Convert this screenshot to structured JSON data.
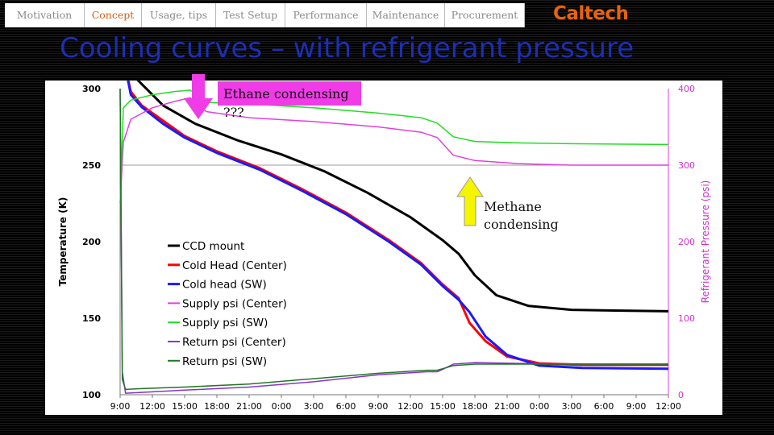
{
  "nav": {
    "tabs": [
      {
        "label": "Motivation",
        "active": false
      },
      {
        "label": "Concept",
        "active": true
      },
      {
        "label": "Usage, tips",
        "active": false
      },
      {
        "label": "Test Setup",
        "active": false
      },
      {
        "label": "Performance",
        "active": false
      },
      {
        "label": "Maintenance",
        "active": false
      },
      {
        "label": "Procurement",
        "active": false
      }
    ],
    "logo": "Caltech"
  },
  "header_small": {
    "line1": "",
    "line2": ""
  },
  "slide": {
    "title": "Cooling curves – with refrigerant pressure",
    "footer": ""
  },
  "annotations": {
    "ethane_label": "Ethane condensing",
    "ethane_q": "???",
    "methane_line1": "Methane",
    "methane_line2": "condensing"
  },
  "colors": {
    "accent": "#d0611a",
    "title": "#1c2fb3",
    "callout": "#f03ce6",
    "arrow_yellow": "#f5f500"
  },
  "chart_data": {
    "type": "line",
    "ylabel": "Temperature (K)",
    "y2label": "Refrigerant Pressure (psi)",
    "ylim": [
      100,
      300
    ],
    "y2lim": [
      0,
      400
    ],
    "yticks": [
      100,
      150,
      200,
      250,
      300
    ],
    "y2ticks": [
      0,
      100,
      200,
      300,
      400
    ],
    "xticks": [
      "9:00",
      "12:00",
      "15:00",
      "18:00",
      "21:00",
      "0:00",
      "3:00",
      "6:00",
      "9:00",
      "12:00",
      "15:00",
      "18:00",
      "21:00",
      "0:00",
      "3:00",
      "6:00",
      "9:00",
      "12:00"
    ],
    "xunits": "hours since 9:00",
    "gridlines": [
      250
    ],
    "legend_position": "center-left",
    "series": [
      {
        "name": "CCD mount",
        "axis": "left",
        "color": "#000000",
        "width": 3,
        "x": [
          0,
          0.6,
          2,
          4,
          7,
          11,
          15,
          19,
          23,
          27,
          30,
          31.5,
          33,
          35,
          38,
          42,
          46,
          51
        ],
        "y": [
          313,
          313,
          303,
          289,
          277,
          266,
          257,
          246,
          232,
          216,
          201,
          192,
          178,
          165,
          158,
          155.5,
          155,
          154.5
        ]
      },
      {
        "name": "Cold Head (Center)",
        "axis": "left",
        "color": "#ff0000",
        "width": 3,
        "x": [
          0,
          0.6,
          1,
          2,
          4,
          6,
          9,
          13,
          17,
          21,
          25,
          28,
          30,
          31.5,
          32.5,
          34,
          36,
          39,
          43,
          51
        ],
        "y": [
          310,
          310,
          298,
          289,
          279,
          269,
          259,
          248,
          234,
          219,
          201,
          186,
          172,
          163,
          147,
          135,
          125,
          120.5,
          119.5,
          119.5
        ]
      },
      {
        "name": "Cold head (SW)",
        "axis": "left",
        "color": "#1a1aff",
        "width": 3,
        "x": [
          0,
          0.6,
          1,
          2,
          4,
          6,
          9,
          13,
          17,
          21,
          25,
          28,
          30,
          31.5,
          32.5,
          34,
          36,
          39,
          43,
          51
        ],
        "y": [
          310,
          310,
          296,
          288,
          277,
          268,
          258,
          247,
          233,
          218,
          200,
          185,
          171,
          162,
          154,
          138,
          126,
          119,
          117.5,
          117
        ]
      },
      {
        "name": "Supply psi (Center)",
        "axis": "right",
        "color": "#e040e0",
        "width": 1.5,
        "x": [
          0,
          0.3,
          1,
          3,
          5,
          6.5,
          7,
          8,
          12,
          18,
          24,
          28,
          29.5,
          31,
          33,
          37,
          42,
          51
        ],
        "y": [
          250,
          330,
          360,
          375,
          383,
          388,
          384,
          370,
          362,
          357,
          350,
          343,
          336,
          313,
          306,
          302,
          300,
          300
        ]
      },
      {
        "name": "Supply psi (SW)",
        "axis": "right",
        "color": "#22dd22",
        "width": 1.5,
        "x": [
          0,
          0.3,
          1,
          3,
          5,
          6.5,
          7.3,
          8.2,
          12,
          18,
          24,
          28,
          29.5,
          31,
          33,
          37,
          42,
          51
        ],
        "y": [
          250,
          375,
          385,
          392,
          396,
          398,
          392,
          382,
          380,
          375,
          368,
          362,
          355,
          337,
          331,
          329,
          328,
          327
        ]
      },
      {
        "name": "Return psi (Center)",
        "axis": "right",
        "color": "#8833cc",
        "width": 1.5,
        "x": [
          0,
          0.2,
          0.5,
          2,
          6,
          12,
          18,
          24,
          28.5,
          29.5,
          30,
          31,
          33,
          37,
          44,
          51
        ],
        "y": [
          400,
          30,
          2,
          3,
          6,
          10,
          17,
          26,
          30,
          30,
          33,
          40,
          42,
          41,
          40,
          40
        ]
      },
      {
        "name": "Return psi (SW)",
        "axis": "right",
        "color": "#227722",
        "width": 1.5,
        "x": [
          0,
          0.2,
          0.5,
          2,
          6,
          12,
          18,
          24,
          28.5,
          29.5,
          30,
          31,
          33,
          37,
          44,
          51
        ],
        "y": [
          400,
          20,
          7,
          8,
          10,
          14,
          21,
          28,
          32,
          32,
          34,
          38,
          40,
          40,
          40,
          40
        ]
      }
    ]
  }
}
